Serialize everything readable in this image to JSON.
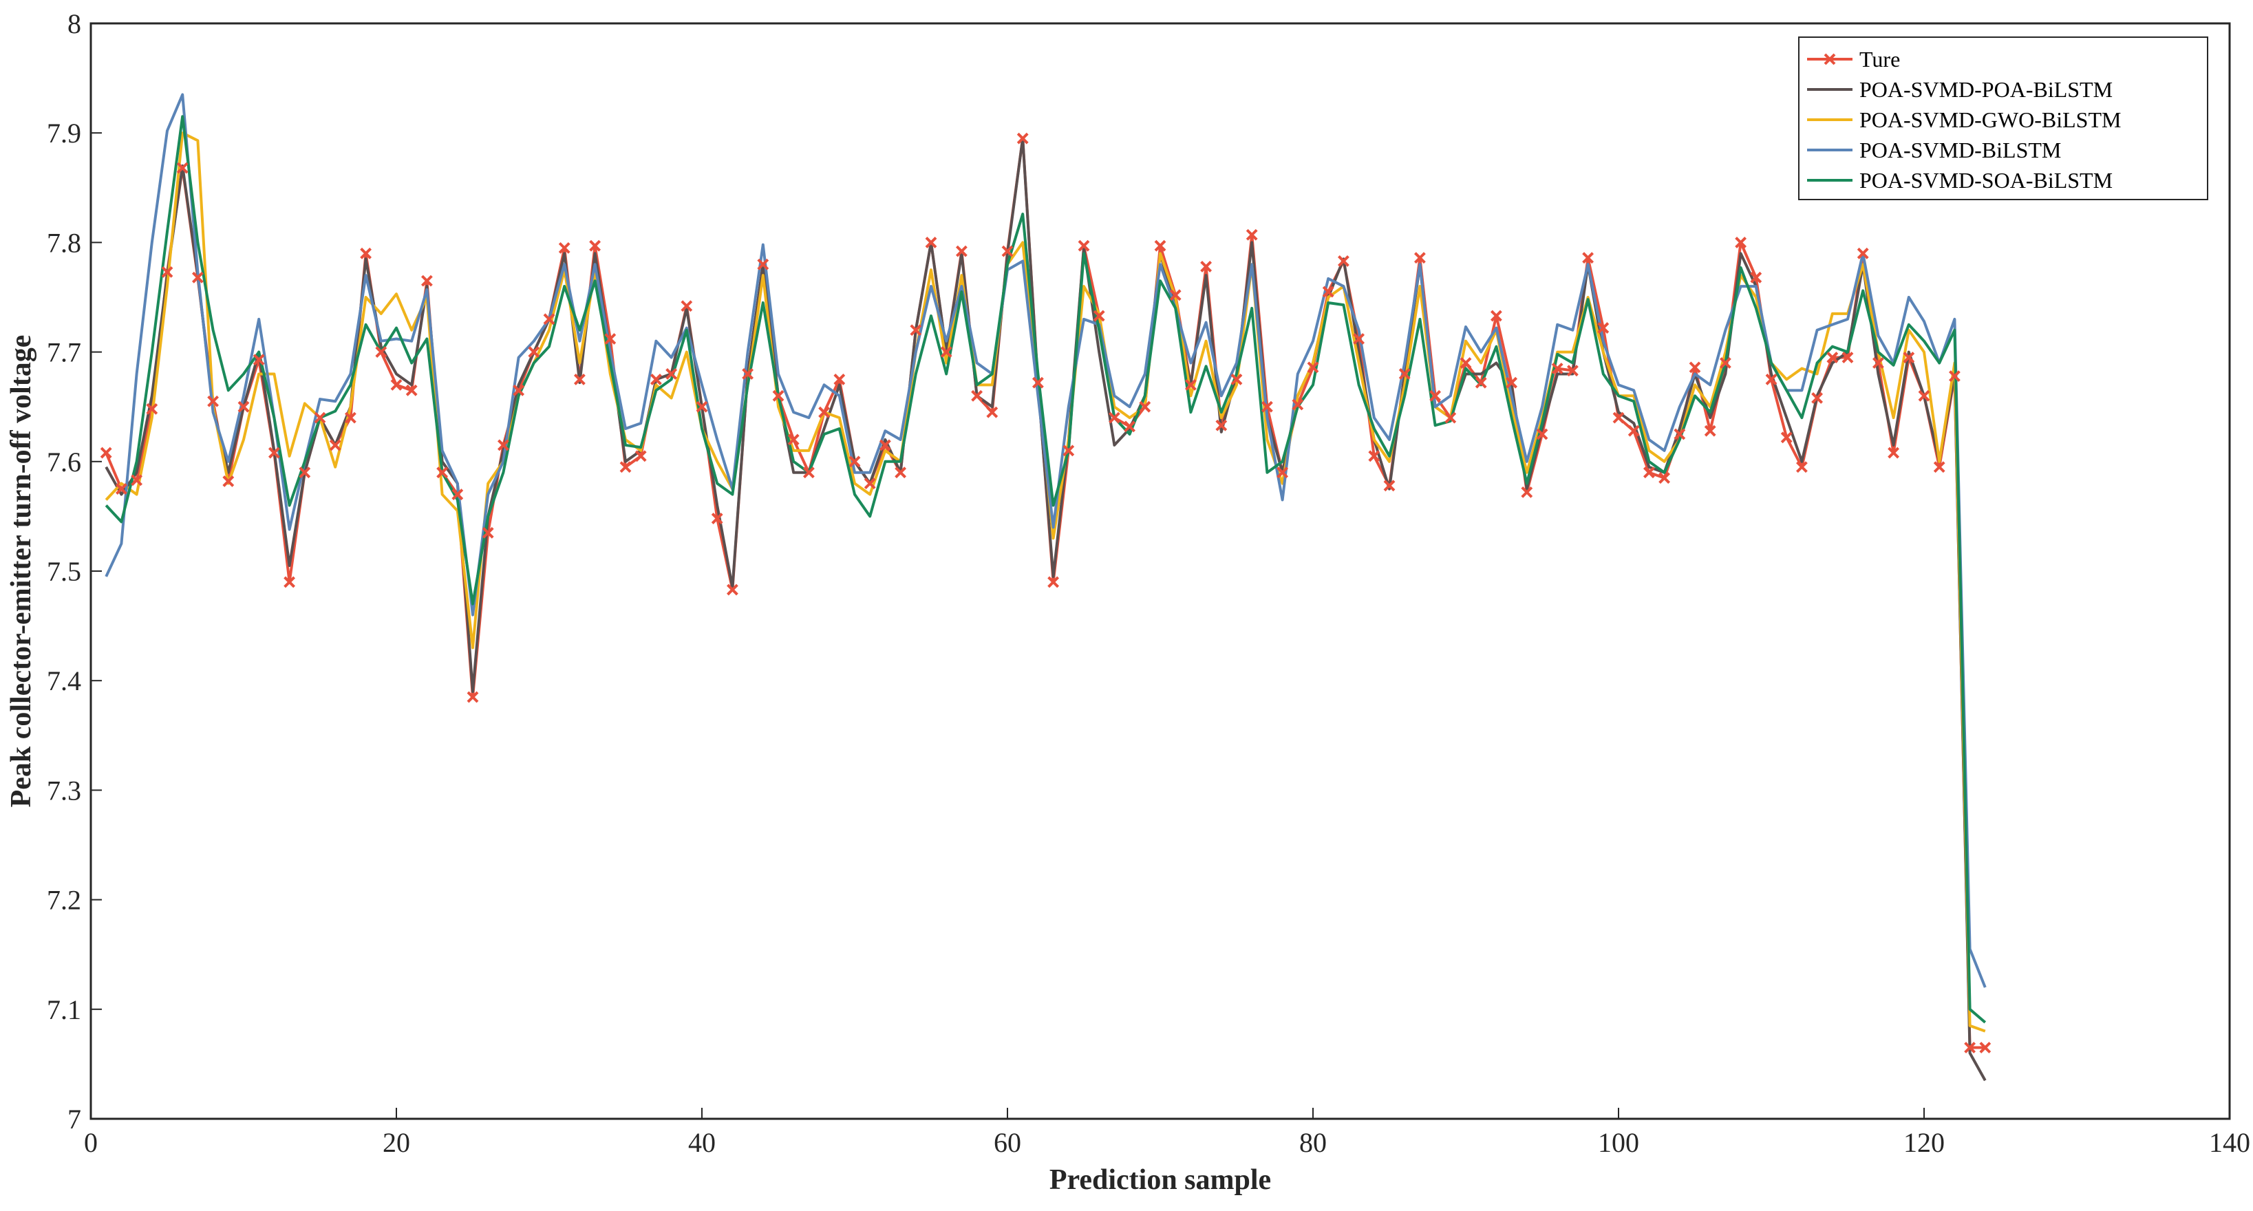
{
  "chart_data": {
    "type": "line",
    "title": "",
    "xlabel": "Prediction sample",
    "ylabel": "Peak collector-emitter turn-off voltage",
    "xlim": [
      0,
      140
    ],
    "ylim": [
      7,
      8
    ],
    "x_ticks": [
      "0",
      "20",
      "40",
      "60",
      "80",
      "100",
      "120",
      "140"
    ],
    "y_ticks": [
      "7",
      "7.1",
      "7.2",
      "7.3",
      "7.4",
      "7.5",
      "7.6",
      "7.7",
      "7.8",
      "7.9",
      "8"
    ],
    "grid": false,
    "legend_position": "top-right",
    "x": [
      1,
      2,
      3,
      4,
      5,
      6,
      7,
      8,
      9,
      10,
      11,
      12,
      13,
      14,
      15,
      16,
      17,
      18,
      19,
      20,
      21,
      22,
      23,
      24,
      25,
      26,
      27,
      28,
      29,
      30,
      31,
      32,
      33,
      34,
      35,
      36,
      37,
      38,
      39,
      40,
      41,
      42,
      43,
      44,
      45,
      46,
      47,
      48,
      49,
      50,
      51,
      52,
      53,
      54,
      55,
      56,
      57,
      58,
      59,
      60,
      61,
      62,
      63,
      64,
      65,
      66,
      67,
      68,
      69,
      70,
      71,
      72,
      73,
      74,
      75,
      76,
      77,
      78,
      79,
      80,
      81,
      82,
      83,
      84,
      85,
      86,
      87,
      88,
      89,
      90,
      91,
      92,
      93,
      94,
      95,
      96,
      97,
      98,
      99,
      100,
      101,
      102,
      103,
      104,
      105,
      106,
      107,
      108,
      109,
      110,
      111,
      112,
      113,
      114,
      115,
      116,
      117,
      118,
      119,
      120,
      121,
      122,
      123,
      124
    ],
    "series": [
      {
        "name": "Ture",
        "color": "#e8503c",
        "marker": "x",
        "values": [
          7.608,
          7.575,
          7.583,
          7.648,
          7.773,
          7.868,
          7.768,
          7.655,
          7.582,
          7.65,
          7.693,
          7.608,
          7.49,
          7.59,
          7.64,
          7.615,
          7.64,
          7.79,
          7.7,
          7.67,
          7.665,
          7.765,
          7.59,
          7.57,
          7.385,
          7.535,
          7.615,
          7.665,
          7.7,
          7.73,
          7.795,
          7.675,
          7.797,
          7.712,
          7.595,
          7.605,
          7.675,
          7.68,
          7.742,
          7.65,
          7.548,
          7.483,
          7.68,
          7.78,
          7.66,
          7.62,
          7.59,
          7.645,
          7.675,
          7.6,
          7.58,
          7.615,
          7.59,
          7.72,
          7.8,
          7.7,
          7.792,
          7.66,
          7.645,
          7.792,
          7.895,
          7.672,
          7.49,
          7.61,
          7.797,
          7.733,
          7.64,
          7.632,
          7.65,
          7.797,
          7.752,
          7.67,
          7.778,
          7.633,
          7.675,
          7.807,
          7.65,
          7.59,
          7.652,
          7.686,
          7.755,
          7.783,
          7.712,
          7.605,
          7.578,
          7.68,
          7.786,
          7.66,
          7.64,
          7.69,
          7.672,
          7.733,
          7.672,
          7.572,
          7.625,
          7.685,
          7.683,
          7.786,
          7.722,
          7.64,
          7.628,
          7.59,
          7.585,
          7.625,
          7.686,
          7.628,
          7.69,
          7.8,
          7.768,
          7.675,
          7.622,
          7.595,
          7.658,
          7.695,
          7.695,
          7.79,
          7.69,
          7.608,
          7.695,
          7.66,
          7.595,
          7.678,
          7.065,
          7.065
        ]
      },
      {
        "name": "POA-SVMD-POA-BiLSTM",
        "color": "#5a4f4f",
        "marker": "none",
        "values": [
          7.595,
          7.57,
          7.59,
          7.66,
          7.77,
          7.87,
          7.77,
          7.65,
          7.59,
          7.65,
          7.7,
          7.61,
          7.505,
          7.59,
          7.64,
          7.615,
          7.65,
          7.785,
          7.705,
          7.68,
          7.67,
          7.76,
          7.6,
          7.58,
          7.39,
          7.55,
          7.61,
          7.67,
          7.7,
          7.73,
          7.79,
          7.672,
          7.79,
          7.7,
          7.6,
          7.61,
          7.675,
          7.68,
          7.74,
          7.65,
          7.56,
          7.485,
          7.68,
          7.78,
          7.66,
          7.59,
          7.59,
          7.63,
          7.67,
          7.6,
          7.58,
          7.62,
          7.59,
          7.72,
          7.8,
          7.7,
          7.79,
          7.66,
          7.65,
          7.79,
          7.895,
          7.67,
          7.495,
          7.62,
          7.795,
          7.7,
          7.615,
          7.63,
          7.66,
          7.79,
          7.74,
          7.67,
          7.77,
          7.627,
          7.68,
          7.8,
          7.64,
          7.59,
          7.66,
          7.69,
          7.75,
          7.785,
          7.7,
          7.62,
          7.575,
          7.68,
          7.78,
          7.65,
          7.64,
          7.68,
          7.68,
          7.69,
          7.67,
          7.575,
          7.63,
          7.68,
          7.68,
          7.78,
          7.7,
          7.645,
          7.635,
          7.595,
          7.59,
          7.63,
          7.68,
          7.64,
          7.68,
          7.79,
          7.76,
          7.68,
          7.64,
          7.6,
          7.66,
          7.69,
          7.7,
          7.78,
          7.68,
          7.615,
          7.7,
          7.66,
          7.6,
          7.68,
          7.06,
          7.035
        ]
      },
      {
        "name": "POA-SVMD-GWO-BiLSTM",
        "color": "#f0b31a",
        "marker": "none",
        "values": [
          7.565,
          7.58,
          7.57,
          7.64,
          7.76,
          7.9,
          7.893,
          7.65,
          7.58,
          7.62,
          7.68,
          7.68,
          7.605,
          7.653,
          7.64,
          7.595,
          7.65,
          7.75,
          7.735,
          7.753,
          7.72,
          7.75,
          7.57,
          7.555,
          7.43,
          7.58,
          7.6,
          7.66,
          7.69,
          7.72,
          7.775,
          7.69,
          7.775,
          7.68,
          7.62,
          7.61,
          7.67,
          7.658,
          7.7,
          7.63,
          7.6,
          7.575,
          7.67,
          7.77,
          7.65,
          7.61,
          7.61,
          7.645,
          7.64,
          7.58,
          7.57,
          7.61,
          7.6,
          7.7,
          7.775,
          7.69,
          7.77,
          7.67,
          7.67,
          7.78,
          7.8,
          7.67,
          7.53,
          7.62,
          7.76,
          7.735,
          7.65,
          7.64,
          7.65,
          7.79,
          7.75,
          7.66,
          7.71,
          7.64,
          7.67,
          7.78,
          7.62,
          7.58,
          7.66,
          7.69,
          7.75,
          7.76,
          7.69,
          7.62,
          7.6,
          7.67,
          7.76,
          7.65,
          7.64,
          7.71,
          7.69,
          7.72,
          7.65,
          7.59,
          7.64,
          7.7,
          7.7,
          7.75,
          7.7,
          7.66,
          7.66,
          7.61,
          7.6,
          7.62,
          7.67,
          7.65,
          7.7,
          7.77,
          7.75,
          7.69,
          7.675,
          7.685,
          7.68,
          7.735,
          7.735,
          7.78,
          7.7,
          7.64,
          7.72,
          7.7,
          7.6,
          7.69,
          7.085,
          7.08
        ]
      },
      {
        "name": "POA-SVMD-BiLSTM",
        "color": "#5a84b7",
        "marker": "none",
        "values": [
          7.495,
          7.525,
          7.68,
          7.8,
          7.902,
          7.935,
          7.773,
          7.645,
          7.6,
          7.66,
          7.73,
          7.64,
          7.538,
          7.6,
          7.657,
          7.655,
          7.68,
          7.77,
          7.71,
          7.712,
          7.71,
          7.757,
          7.61,
          7.58,
          7.46,
          7.57,
          7.6,
          7.695,
          7.71,
          7.73,
          7.78,
          7.71,
          7.78,
          7.7,
          7.63,
          7.635,
          7.71,
          7.695,
          7.722,
          7.67,
          7.62,
          7.575,
          7.7,
          7.798,
          7.68,
          7.645,
          7.64,
          7.67,
          7.66,
          7.59,
          7.59,
          7.628,
          7.62,
          7.7,
          7.76,
          7.71,
          7.76,
          7.69,
          7.68,
          7.775,
          7.783,
          7.66,
          7.54,
          7.65,
          7.73,
          7.725,
          7.66,
          7.65,
          7.68,
          7.78,
          7.74,
          7.69,
          7.727,
          7.66,
          7.69,
          7.78,
          7.64,
          7.565,
          7.68,
          7.71,
          7.767,
          7.76,
          7.72,
          7.64,
          7.62,
          7.69,
          7.78,
          7.65,
          7.66,
          7.723,
          7.7,
          7.722,
          7.66,
          7.6,
          7.65,
          7.725,
          7.72,
          7.78,
          7.71,
          7.67,
          7.665,
          7.62,
          7.61,
          7.65,
          7.68,
          7.67,
          7.72,
          7.76,
          7.76,
          7.69,
          7.665,
          7.665,
          7.72,
          7.725,
          7.73,
          7.79,
          7.715,
          7.69,
          7.75,
          7.728,
          7.69,
          7.73,
          7.155,
          7.12
        ]
      },
      {
        "name": "POA-SVMD-SOA-BiLSTM",
        "color": "#1a8a5a",
        "marker": "none",
        "values": [
          7.56,
          7.545,
          7.6,
          7.7,
          7.81,
          7.915,
          7.8,
          7.72,
          7.665,
          7.68,
          7.7,
          7.64,
          7.56,
          7.6,
          7.64,
          7.646,
          7.67,
          7.725,
          7.7,
          7.722,
          7.69,
          7.712,
          7.59,
          7.565,
          7.47,
          7.55,
          7.59,
          7.66,
          7.69,
          7.705,
          7.76,
          7.72,
          7.765,
          7.69,
          7.615,
          7.613,
          7.665,
          7.675,
          7.72,
          7.63,
          7.58,
          7.57,
          7.67,
          7.745,
          7.66,
          7.6,
          7.59,
          7.625,
          7.63,
          7.57,
          7.55,
          7.6,
          7.6,
          7.68,
          7.733,
          7.68,
          7.755,
          7.67,
          7.68,
          7.78,
          7.826,
          7.68,
          7.56,
          7.61,
          7.79,
          7.72,
          7.64,
          7.625,
          7.66,
          7.765,
          7.74,
          7.645,
          7.687,
          7.645,
          7.68,
          7.74,
          7.59,
          7.6,
          7.65,
          7.67,
          7.745,
          7.743,
          7.67,
          7.63,
          7.605,
          7.66,
          7.73,
          7.633,
          7.637,
          7.685,
          7.67,
          7.705,
          7.64,
          7.58,
          7.635,
          7.698,
          7.69,
          7.748,
          7.68,
          7.66,
          7.655,
          7.6,
          7.59,
          7.62,
          7.66,
          7.645,
          7.69,
          7.777,
          7.74,
          7.69,
          7.665,
          7.64,
          7.69,
          7.705,
          7.7,
          7.756,
          7.7,
          7.688,
          7.725,
          7.71,
          7.69,
          7.72,
          7.1,
          7.088
        ]
      }
    ]
  }
}
